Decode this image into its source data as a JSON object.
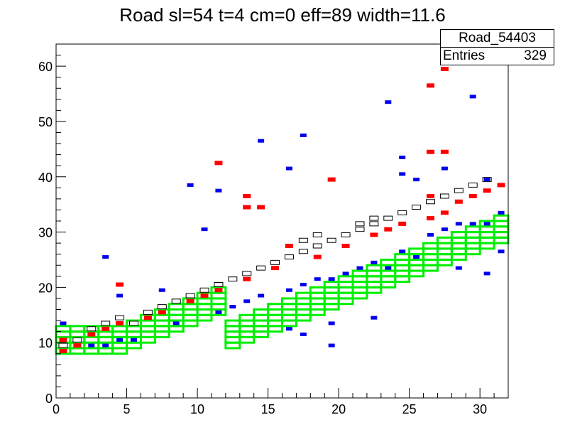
{
  "chart_data": {
    "type": "heatmap",
    "title": "Road sl=54 t=4 cm=0 eff=89 width=11.6",
    "xlabel": "",
    "ylabel": "",
    "xlim": [
      0,
      32
    ],
    "ylim": [
      0,
      64
    ],
    "x_ticks": [
      "0",
      "5",
      "10",
      "15",
      "20",
      "25",
      "30"
    ],
    "y_ticks": [
      "0",
      "10",
      "20",
      "30",
      "40",
      "50",
      "60"
    ],
    "grid": false,
    "stats": {
      "name": "Road_54403",
      "entries_label": "Entries",
      "entries": "329"
    },
    "colors": {
      "road": "#00ee00",
      "hist": "#000000",
      "red": "#ff0000",
      "blue": "#0000ee"
    },
    "road_band": {
      "cols": 32,
      "rows_per_col": 5,
      "base_start": 8,
      "slope": 1,
      "cap": 32,
      "from_col": 12
    },
    "red_points": [
      [
        0.5,
        8.5
      ],
      [
        1.5,
        9.5
      ],
      [
        2.5,
        11.5
      ],
      [
        3.5,
        12.5
      ],
      [
        4.5,
        13.5
      ],
      [
        6.5,
        14.5
      ],
      [
        7.5,
        15.5
      ],
      [
        9.5,
        17.5
      ],
      [
        10.5,
        18.5
      ],
      [
        11.5,
        19.5
      ],
      [
        13.5,
        21.5
      ],
      [
        15.5,
        23.5
      ],
      [
        18.5,
        25.5
      ],
      [
        20.5,
        27.5
      ],
      [
        22.5,
        29.5
      ],
      [
        23.5,
        30.5
      ],
      [
        24.5,
        31.5
      ],
      [
        26.5,
        32.5
      ],
      [
        27.5,
        33.5
      ],
      [
        28.5,
        35.5
      ],
      [
        29.5,
        36.5
      ],
      [
        30.5,
        37.5
      ],
      [
        31.5,
        38.5
      ],
      [
        0.5,
        10.5
      ],
      [
        4.5,
        20.5
      ],
      [
        11.5,
        42.5
      ],
      [
        13.5,
        36.5
      ],
      [
        13.5,
        34.5
      ],
      [
        14.5,
        34.5
      ],
      [
        16.5,
        27.5
      ],
      [
        19.5,
        39.5
      ],
      [
        26.5,
        56.5
      ],
      [
        26.5,
        36.5
      ],
      [
        27.5,
        59.5
      ],
      [
        26.5,
        44.5
      ],
      [
        27.5,
        44.5
      ]
    ],
    "blue_points": [
      [
        0.5,
        8.5
      ],
      [
        2.5,
        9.5
      ],
      [
        3.5,
        9.5
      ],
      [
        4.5,
        10.5
      ],
      [
        5.5,
        10.5
      ],
      [
        8.5,
        13.5
      ],
      [
        11.5,
        15.5
      ],
      [
        12.5,
        16.5
      ],
      [
        13.5,
        17.5
      ],
      [
        14.5,
        18.5
      ],
      [
        16.5,
        19.5
      ],
      [
        17.5,
        20.5
      ],
      [
        18.5,
        21.5
      ],
      [
        19.5,
        21.5
      ],
      [
        20.5,
        22.5
      ],
      [
        21.5,
        23.5
      ],
      [
        22.5,
        24.5
      ],
      [
        23.5,
        23.5
      ],
      [
        24.5,
        26.5
      ],
      [
        25.5,
        25.5
      ],
      [
        26.5,
        29.5
      ],
      [
        27.5,
        30.5
      ],
      [
        28.5,
        31.5
      ],
      [
        29.5,
        31.5
      ],
      [
        30.5,
        31.5
      ],
      [
        31.5,
        33.5
      ],
      [
        0.5,
        13.5
      ],
      [
        3.5,
        25.5
      ],
      [
        4.5,
        18.5
      ],
      [
        7.5,
        19.5
      ],
      [
        9.5,
        38.5
      ],
      [
        10.5,
        30.5
      ],
      [
        11.5,
        37.5
      ],
      [
        14.5,
        46.5
      ],
      [
        16.5,
        41.5
      ],
      [
        17.5,
        47.5
      ],
      [
        17.5,
        11.5
      ],
      [
        19.5,
        9.5
      ],
      [
        19.5,
        13.5
      ],
      [
        16.5,
        12.5
      ],
      [
        22.5,
        14.5
      ],
      [
        23.5,
        53.5
      ],
      [
        24.5,
        43.5
      ],
      [
        24.5,
        40.5
      ],
      [
        25.5,
        39.5
      ],
      [
        27.5,
        41.5
      ],
      [
        29.5,
        54.5
      ],
      [
        28.5,
        23.5
      ],
      [
        30.5,
        22.5
      ],
      [
        30.5,
        39.5
      ],
      [
        31.5,
        26.5
      ]
    ],
    "black_points": [
      [
        0.5,
        9.5
      ],
      [
        1.5,
        10.5
      ],
      [
        2.5,
        12.5
      ],
      [
        3.5,
        13.5
      ],
      [
        4.5,
        14.5
      ],
      [
        5.5,
        13.5
      ],
      [
        6.5,
        15.5
      ],
      [
        7.5,
        16.5
      ],
      [
        8.5,
        17.5
      ],
      [
        9.5,
        18.5
      ],
      [
        10.5,
        19.5
      ],
      [
        11.5,
        20.5
      ],
      [
        12.5,
        21.5
      ],
      [
        13.5,
        22.5
      ],
      [
        14.5,
        23.5
      ],
      [
        15.5,
        24.5
      ],
      [
        16.5,
        25.5
      ],
      [
        17.5,
        26.5
      ],
      [
        18.5,
        27.5
      ],
      [
        19.5,
        28.5
      ],
      [
        20.5,
        29.5
      ],
      [
        21.5,
        30.5
      ],
      [
        22.5,
        31.5
      ],
      [
        23.5,
        32.5
      ],
      [
        24.5,
        33.5
      ],
      [
        25.5,
        34.5
      ],
      [
        26.5,
        35.5
      ],
      [
        27.5,
        36.5
      ],
      [
        28.5,
        37.5
      ],
      [
        29.5,
        38.5
      ],
      [
        30.5,
        39.5
      ],
      [
        17.5,
        28.5
      ],
      [
        18.5,
        29.5
      ],
      [
        21.5,
        31.5
      ],
      [
        22.5,
        32.5
      ]
    ]
  }
}
